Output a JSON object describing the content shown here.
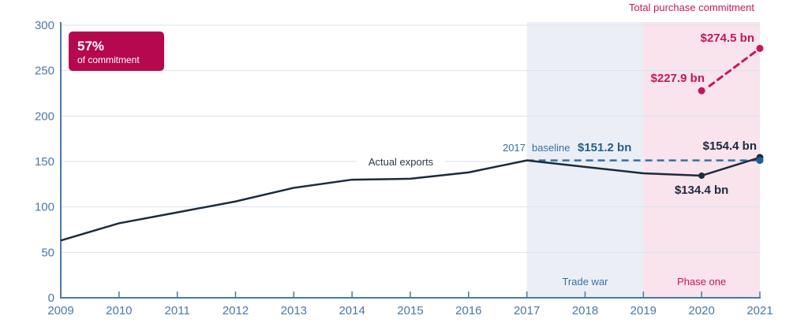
{
  "chart_data": {
    "type": "line",
    "title": "",
    "xlabel": "",
    "ylabel": "",
    "x": [
      2009,
      2010,
      2011,
      2012,
      2013,
      2014,
      2015,
      2016,
      2017,
      2018,
      2019,
      2020,
      2021
    ],
    "xlim": [
      2009,
      2021
    ],
    "ylim": [
      0,
      300
    ],
    "yticks": [
      0,
      50,
      100,
      150,
      200,
      250,
      300
    ],
    "xticks": [
      "2009",
      "2010",
      "2011",
      "2012",
      "2013",
      "2014",
      "2015",
      "2016",
      "2017",
      "2018",
      "2019",
      "2020",
      "2021"
    ],
    "grid": true,
    "series": [
      {
        "name": "Actual exports",
        "x": [
          2009,
          2010,
          2011,
          2012,
          2013,
          2014,
          2015,
          2016,
          2017,
          2018,
          2019,
          2020,
          2021
        ],
        "values": [
          63,
          82,
          94,
          106,
          121,
          130,
          131,
          138,
          151.2,
          144,
          137,
          134.4,
          154.4
        ],
        "color": "#1c2b3c"
      },
      {
        "name": "2017 baseline",
        "x": [
          2017,
          2021
        ],
        "values": [
          151.2,
          151.2
        ],
        "color": "#3a6f9e",
        "style": "dashed"
      },
      {
        "name": "Total purchase commitment",
        "x": [
          2020,
          2021
        ],
        "values": [
          227.9,
          274.5
        ],
        "color": "#c2185b",
        "style": "dashed"
      }
    ],
    "shaded_regions": [
      {
        "label": "Trade war",
        "from": 2017,
        "to": 2019,
        "color": "#ebeff5",
        "label_color": "#3a6f9e"
      },
      {
        "label": "Phase one",
        "from": 2019,
        "to": 2021,
        "color": "#f9e3ec",
        "label_color": "#c2185b"
      }
    ],
    "annotations": {
      "actual_exports_label": "Actual exports",
      "baseline_year": "2017",
      "baseline_word": "baseline",
      "baseline_value": "$151.2 bn",
      "value_2020": "$134.4 bn",
      "value_2021": "$154.4 bn",
      "commitment_title": "Total purchase commitment",
      "commitment_2020": "$227.9 bn",
      "commitment_2021": "$274.5 bn"
    },
    "callout": {
      "percent": "57%",
      "text": "of commitment",
      "color": "#b5084f"
    }
  }
}
